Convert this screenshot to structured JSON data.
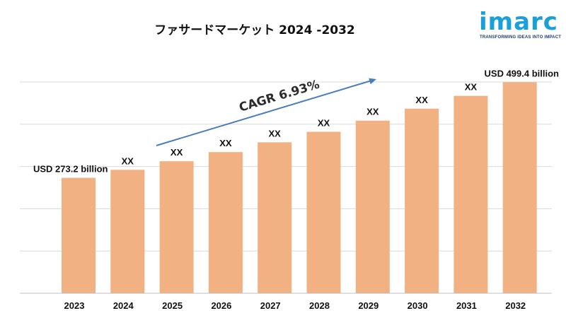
{
  "header": {
    "title": "ファサードマーケット 2024 -2032"
  },
  "logo": {
    "word": "imarc",
    "tagline": "TRANSFORMING IDEAS INTO IMPACT"
  },
  "chart_data": {
    "type": "bar",
    "categories": [
      "2023",
      "2024",
      "2025",
      "2026",
      "2027",
      "2028",
      "2029",
      "2030",
      "2031",
      "2032"
    ],
    "values": [
      273.2,
      292.1,
      312.4,
      334.1,
      357.2,
      382.0,
      408.5,
      436.8,
      467.1,
      499.4
    ],
    "data_labels": [
      "USD 273.2 billion",
      "XX",
      "XX",
      "XX",
      "XX",
      "XX",
      "XX",
      "XX",
      "XX",
      "USD 499.4 billion"
    ],
    "annotation": "CAGR  6.93%",
    "ylim": [
      0,
      520
    ],
    "grid": true,
    "colors": {
      "bar": "#f2b183",
      "arrow": "#4a7ebb",
      "grid": "#d9d9d9",
      "axis": "#bfbfbf"
    }
  }
}
